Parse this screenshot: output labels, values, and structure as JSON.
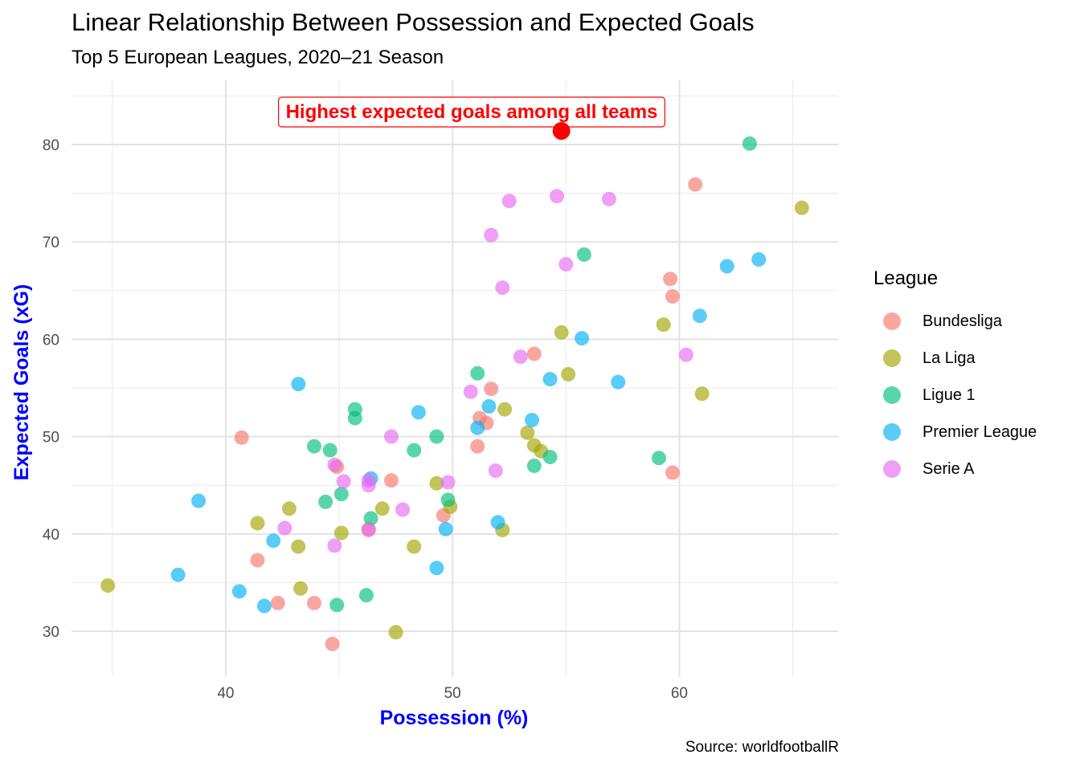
{
  "chart_data": {
    "type": "scatter",
    "title": "Linear Relationship Between Possession and Expected Goals",
    "subtitle": "Top 5 European Leagues, 2020–21 Season",
    "xlabel": "Possession (%)",
    "ylabel": "Expected Goals (xG)",
    "caption": "Source: worldfootballR",
    "xlim": [
      33.2,
      67.0
    ],
    "ylim": [
      25.3,
      86.6
    ],
    "x_ticks": [
      40,
      50,
      60
    ],
    "y_ticks": [
      30,
      40,
      50,
      60,
      70,
      80
    ],
    "grid": true,
    "legend": {
      "title": "League",
      "position": "right"
    },
    "annotation": {
      "text": "Highest expected goals among all teams",
      "x": 54.8,
      "y": 81.4,
      "color": "#FF0000"
    },
    "series": [
      {
        "name": "Bundesliga",
        "color": "#F8766D",
        "points": [
          [
            60.7,
            75.9
          ],
          [
            59.6,
            66.2
          ],
          [
            59.7,
            64.4
          ],
          [
            53.6,
            58.5
          ],
          [
            51.7,
            54.9
          ],
          [
            51.2,
            51.9
          ],
          [
            51.5,
            51.4
          ],
          [
            51.1,
            49.0
          ],
          [
            40.7,
            49.9
          ],
          [
            44.9,
            46.9
          ],
          [
            47.3,
            45.5
          ],
          [
            59.7,
            46.3
          ],
          [
            49.6,
            41.9
          ],
          [
            46.3,
            40.5
          ],
          [
            41.4,
            37.3
          ],
          [
            42.3,
            32.9
          ],
          [
            43.9,
            32.9
          ],
          [
            44.7,
            28.7
          ]
        ]
      },
      {
        "name": "La Liga",
        "color": "#A3A500",
        "points": [
          [
            65.4,
            73.5
          ],
          [
            59.3,
            61.5
          ],
          [
            54.8,
            60.7
          ],
          [
            55.1,
            56.4
          ],
          [
            61.0,
            54.4
          ],
          [
            52.3,
            52.8
          ],
          [
            53.3,
            50.4
          ],
          [
            53.6,
            49.1
          ],
          [
            53.9,
            48.5
          ],
          [
            49.3,
            45.2
          ],
          [
            42.8,
            42.6
          ],
          [
            46.9,
            42.6
          ],
          [
            49.9,
            42.8
          ],
          [
            41.4,
            41.1
          ],
          [
            45.1,
            40.1
          ],
          [
            52.2,
            40.4
          ],
          [
            43.2,
            38.7
          ],
          [
            48.3,
            38.7
          ],
          [
            43.3,
            34.4
          ],
          [
            34.8,
            34.7
          ],
          [
            47.5,
            29.9
          ]
        ]
      },
      {
        "name": "Ligue 1",
        "color": "#00BF7D",
        "points": [
          [
            63.1,
            80.1
          ],
          [
            55.8,
            68.7
          ],
          [
            51.1,
            56.5
          ],
          [
            45.7,
            52.8
          ],
          [
            45.7,
            51.9
          ],
          [
            49.3,
            50.0
          ],
          [
            43.9,
            49.0
          ],
          [
            44.6,
            48.6
          ],
          [
            48.3,
            48.6
          ],
          [
            54.3,
            47.9
          ],
          [
            53.6,
            47.0
          ],
          [
            59.1,
            47.8
          ],
          [
            45.1,
            44.1
          ],
          [
            44.4,
            43.3
          ],
          [
            49.8,
            43.5
          ],
          [
            46.4,
            41.6
          ],
          [
            46.2,
            33.7
          ],
          [
            44.9,
            32.7
          ]
        ]
      },
      {
        "name": "Premier League",
        "color": "#00B0F6",
        "points": [
          [
            62.1,
            67.5
          ],
          [
            63.5,
            68.2
          ],
          [
            60.9,
            62.4
          ],
          [
            55.7,
            60.1
          ],
          [
            54.3,
            55.9
          ],
          [
            57.3,
            55.6
          ],
          [
            43.2,
            55.4
          ],
          [
            51.6,
            53.1
          ],
          [
            48.5,
            52.5
          ],
          [
            53.5,
            51.7
          ],
          [
            51.1,
            50.9
          ],
          [
            46.4,
            45.7
          ],
          [
            38.8,
            43.4
          ],
          [
            52.0,
            41.2
          ],
          [
            49.7,
            40.5
          ],
          [
            42.1,
            39.3
          ],
          [
            49.3,
            36.5
          ],
          [
            37.9,
            35.8
          ],
          [
            40.6,
            34.1
          ],
          [
            41.7,
            32.6
          ]
        ]
      },
      {
        "name": "Serie A",
        "color": "#E76BF3",
        "points": [
          [
            54.6,
            74.7
          ],
          [
            56.9,
            74.4
          ],
          [
            52.5,
            74.2
          ],
          [
            51.7,
            70.7
          ],
          [
            55.0,
            67.7
          ],
          [
            52.2,
            65.3
          ],
          [
            60.3,
            58.4
          ],
          [
            53.0,
            58.2
          ],
          [
            50.8,
            54.6
          ],
          [
            47.3,
            50.0
          ],
          [
            44.8,
            47.1
          ],
          [
            45.2,
            45.4
          ],
          [
            46.3,
            45.5
          ],
          [
            46.3,
            45.0
          ],
          [
            49.8,
            45.3
          ],
          [
            51.9,
            46.5
          ],
          [
            47.8,
            42.5
          ],
          [
            42.6,
            40.6
          ],
          [
            46.3,
            40.4
          ],
          [
            44.8,
            38.8
          ]
        ]
      }
    ]
  }
}
